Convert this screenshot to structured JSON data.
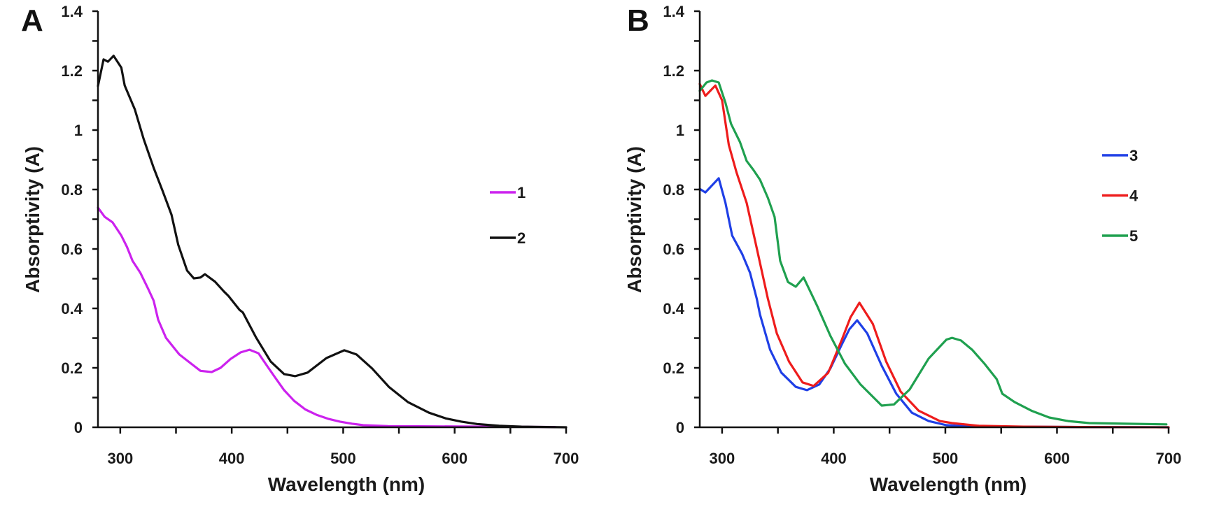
{
  "chart_data": [
    {
      "type": "line",
      "panel_label": "A",
      "xlabel": "Wavelength (nm)",
      "ylabel": "Absorptivity (A)",
      "xlim": [
        280,
        700
      ],
      "ylim": [
        0,
        1.4
      ],
      "xticks": [
        300,
        400,
        500,
        600,
        700
      ],
      "yticks": [
        0,
        0.2,
        0.4,
        0.6,
        0.8,
        1,
        1.2,
        1.4
      ],
      "ytick_labels": [
        "0",
        "0.2",
        "0.4",
        "0.6",
        "0.8",
        "1",
        "1.2",
        "1.4"
      ],
      "grid": false,
      "legend_position": "right",
      "series": [
        {
          "name": "1",
          "color": "#cc22ee",
          "x": [
            280,
            286,
            293,
            301,
            306,
            311,
            318,
            325,
            330,
            334,
            341,
            353,
            365,
            372,
            382,
            390,
            399,
            408,
            416,
            424,
            432,
            439,
            447,
            456,
            466,
            476,
            487,
            497,
            508,
            518,
            540,
            580,
            630,
            690
          ],
          "y": [
            0.739,
            0.708,
            0.69,
            0.645,
            0.607,
            0.56,
            0.52,
            0.466,
            0.426,
            0.362,
            0.301,
            0.245,
            0.21,
            0.19,
            0.186,
            0.2,
            0.23,
            0.252,
            0.261,
            0.249,
            0.205,
            0.167,
            0.125,
            0.089,
            0.06,
            0.042,
            0.028,
            0.019,
            0.012,
            0.007,
            0.004,
            0.003,
            0.002,
            0.001
          ]
        },
        {
          "name": "2",
          "color": "#111111",
          "x": [
            280,
            285,
            289,
            294,
            301,
            304,
            313,
            321,
            330,
            338,
            346,
            352,
            360,
            366,
            372,
            376,
            385,
            393,
            397,
            407,
            410,
            422,
            435,
            447,
            457,
            468,
            485,
            501,
            512,
            526,
            541,
            558,
            577,
            592,
            606,
            620,
            640,
            660,
            700
          ],
          "y": [
            1.148,
            1.238,
            1.23,
            1.25,
            1.21,
            1.15,
            1.07,
            0.97,
            0.873,
            0.795,
            0.715,
            0.614,
            0.527,
            0.501,
            0.504,
            0.515,
            0.49,
            0.457,
            0.442,
            0.395,
            0.386,
            0.301,
            0.221,
            0.179,
            0.172,
            0.184,
            0.233,
            0.259,
            0.245,
            0.198,
            0.136,
            0.085,
            0.049,
            0.03,
            0.019,
            0.011,
            0.005,
            0.002,
            0.0
          ]
        }
      ]
    },
    {
      "type": "line",
      "panel_label": "B",
      "xlabel": "Wavelength (nm)",
      "ylabel": "Absorptivity (A)",
      "xlim": [
        280,
        700
      ],
      "ylim": [
        0,
        1.4
      ],
      "xticks": [
        300,
        400,
        500,
        600,
        700
      ],
      "yticks": [
        0,
        0.2,
        0.4,
        0.6,
        0.8,
        1,
        1.2,
        1.4
      ],
      "ytick_labels": [
        "0",
        "0.2",
        "0.4",
        "0.6",
        "0.8",
        "1",
        "1.2",
        "1.4"
      ],
      "grid": false,
      "legend_position": "right",
      "series": [
        {
          "name": "3",
          "color": "#1f3fe6",
          "x": [
            280,
            285,
            297,
            303,
            309,
            318,
            325,
            331,
            334,
            343,
            353,
            366,
            376,
            387,
            397,
            407,
            414,
            421,
            430,
            443,
            456,
            470,
            485,
            501,
            520,
            560,
            620,
            700
          ],
          "y": [
            0.802,
            0.79,
            0.838,
            0.755,
            0.645,
            0.583,
            0.52,
            0.433,
            0.379,
            0.261,
            0.184,
            0.136,
            0.125,
            0.144,
            0.198,
            0.277,
            0.33,
            0.36,
            0.316,
            0.207,
            0.113,
            0.049,
            0.021,
            0.007,
            0.003,
            0.002,
            0.001,
            0.0
          ]
        },
        {
          "name": "4",
          "color": "#ee1c1c",
          "x": [
            280,
            285,
            294,
            300,
            306,
            313,
            322,
            330,
            341,
            349,
            360,
            372,
            382,
            395,
            407,
            415,
            423,
            435,
            447,
            460,
            476,
            495,
            506,
            530,
            570,
            620,
            700
          ],
          "y": [
            1.155,
            1.115,
            1.15,
            1.1,
            0.95,
            0.857,
            0.755,
            0.62,
            0.433,
            0.316,
            0.221,
            0.151,
            0.139,
            0.183,
            0.292,
            0.37,
            0.419,
            0.348,
            0.221,
            0.12,
            0.056,
            0.021,
            0.014,
            0.005,
            0.002,
            0.001,
            0.0
          ]
        },
        {
          "name": "5",
          "color": "#1fa04f",
          "x": [
            280,
            286,
            291,
            297,
            303,
            308,
            316,
            322,
            328,
            334,
            341,
            347,
            352,
            359,
            366,
            373,
            385,
            397,
            410,
            424,
            443,
            454,
            468,
            485,
            501,
            506,
            514,
            524,
            535,
            546,
            551,
            562,
            577,
            593,
            610,
            629,
            661,
            698
          ],
          "y": [
            1.132,
            1.16,
            1.167,
            1.16,
            1.092,
            1.021,
            0.96,
            0.896,
            0.866,
            0.833,
            0.772,
            0.708,
            0.56,
            0.489,
            0.473,
            0.504,
            0.41,
            0.308,
            0.214,
            0.144,
            0.073,
            0.077,
            0.127,
            0.231,
            0.295,
            0.301,
            0.292,
            0.261,
            0.214,
            0.162,
            0.113,
            0.085,
            0.056,
            0.033,
            0.021,
            0.014,
            0.012,
            0.01
          ]
        }
      ]
    }
  ]
}
